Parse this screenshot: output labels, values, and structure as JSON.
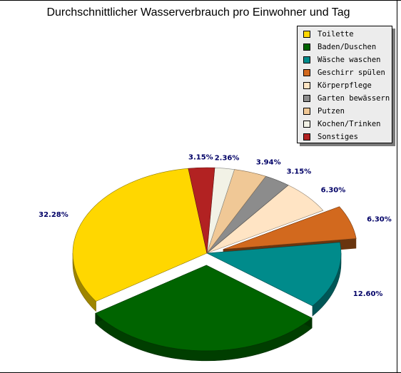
{
  "chart_data": {
    "type": "pie",
    "title": "Durchschnittlicher Wasserverbrauch pro Einwohner und Tag",
    "legend_position": "top-right",
    "slices": [
      {
        "label": "Toilette",
        "value": 32.28,
        "display": "32.28%",
        "color": "#ffd700",
        "exploded": false
      },
      {
        "label": "Baden/Duschen",
        "value": 29.92,
        "display": "29.92%",
        "color": "#006400",
        "exploded": true
      },
      {
        "label": "Wäsche waschen",
        "value": 12.6,
        "display": "12.60%",
        "color": "#008b8b",
        "exploded": false
      },
      {
        "label": "Geschirr spülen",
        "value": 6.3,
        "display": "6.30%",
        "color": "#d2691e",
        "exploded": true
      },
      {
        "label": "Körperpflege",
        "value": 6.3,
        "display": "6.30%",
        "color": "#ffe4c4",
        "exploded": false
      },
      {
        "label": "Garten bewässern",
        "value": 3.15,
        "display": "3.15%",
        "color": "#8c8c8c",
        "exploded": false
      },
      {
        "label": "Putzen",
        "value": 3.94,
        "display": "3.94%",
        "color": "#f0c896",
        "exploded": false
      },
      {
        "label": "Kochen/Trinken",
        "value": 2.36,
        "display": "2.36%",
        "color": "#f2f2e6",
        "exploded": false
      },
      {
        "label": "Sonstiges",
        "value": 3.15,
        "display": "3.15%",
        "color": "#b22222",
        "exploded": false
      }
    ]
  }
}
